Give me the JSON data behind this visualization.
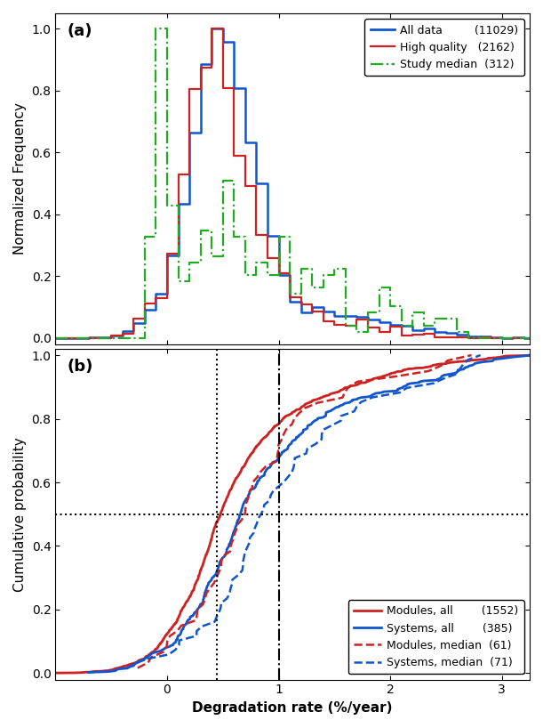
{
  "title_a": "(a)",
  "title_b": "(b)",
  "xlabel": "Degradation rate (%/year)",
  "ylabel_a": "Normalized Frequency",
  "ylabel_b": "Cumulative probability",
  "xlim": [
    -1.0,
    3.25
  ],
  "ylim_a": [
    -0.02,
    1.05
  ],
  "ylim_b": [
    -0.02,
    1.02
  ],
  "legend_a": {
    "labels": [
      "All data",
      "High quality",
      "Study median"
    ],
    "counts": [
      "(11029)",
      "(2162)",
      "(312)"
    ],
    "colors": [
      "#1155cc",
      "#cc2222",
      "#22aa22"
    ],
    "linestyles": [
      "-",
      "-",
      "-."
    ]
  },
  "legend_b": {
    "labels": [
      "Modules, all",
      "Systems, all",
      "Modules, median",
      "Systems, median"
    ],
    "counts": [
      "(1552)",
      "(385)",
      "(61)",
      "(71)"
    ],
    "colors": [
      "#cc2222",
      "#1155cc",
      "#cc2222",
      "#1155cc"
    ],
    "linestyles": [
      "-",
      "-",
      "--",
      "--"
    ]
  },
  "vline1_x": 0.45,
  "vline2_x": 1.0,
  "hline_y": 0.5,
  "seed": 42,
  "bin_width": 0.1
}
